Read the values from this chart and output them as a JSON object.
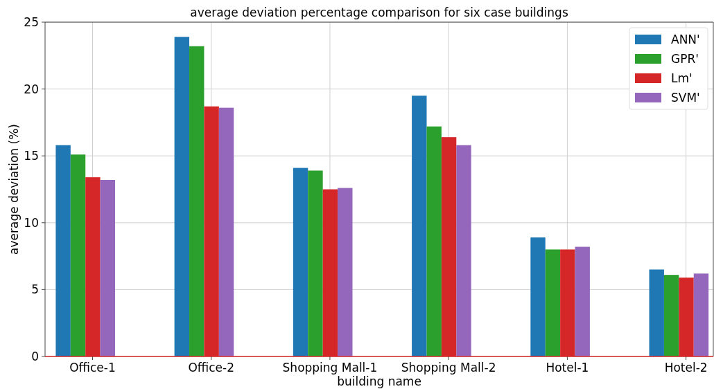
{
  "chart_data": {
    "type": "bar",
    "title": "average deviation percentage comparison for six case buildings",
    "xlabel": "building name",
    "ylabel": "average deviation (%)",
    "categories": [
      "Office-1",
      "Office-2",
      "Shopping Mall-1",
      "Shopping Mall-2",
      "Hotel-1",
      "Hotel-2"
    ],
    "series": [
      {
        "name": "ANN'",
        "color": "#1f77b4",
        "values": [
          15.8,
          23.9,
          14.1,
          19.5,
          8.9,
          6.5
        ]
      },
      {
        "name": "GPR'",
        "color": "#2ca02c",
        "values": [
          15.1,
          23.2,
          13.9,
          17.2,
          8.0,
          6.1
        ]
      },
      {
        "name": "Lm'",
        "color": "#d62728",
        "values": [
          13.4,
          18.7,
          12.5,
          16.4,
          8.0,
          5.9
        ]
      },
      {
        "name": "SVM'",
        "color": "#9467bd",
        "values": [
          13.2,
          18.6,
          12.6,
          15.8,
          8.2,
          6.2
        ]
      }
    ],
    "ylim": [
      0,
      25
    ],
    "yticks": [
      0,
      5,
      10,
      15,
      20,
      25
    ],
    "grid": true,
    "legend": "top right"
  }
}
